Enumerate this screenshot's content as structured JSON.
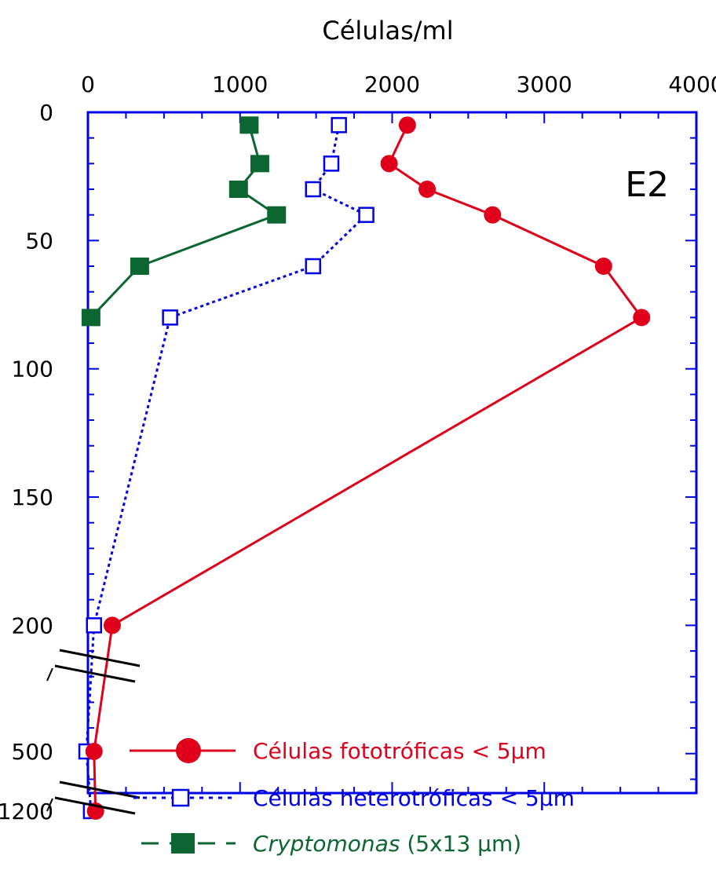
{
  "chart_data": {
    "type": "line",
    "xlabel": "Células/ml",
    "x_ticks": [
      "0",
      "1000",
      "2000",
      "3000",
      "4000"
    ],
    "y_ticks": [
      "0",
      "50",
      "100",
      "150",
      "200",
      "500",
      "1200"
    ],
    "xlim": [
      0,
      4000
    ],
    "y_axis_note": "broken depth axis: 0-200 linear, then 500 and 1200",
    "y_axis_reversed": true,
    "panel_label": "E2",
    "legend_placement": "bottom-right",
    "series": [
      {
        "name": "Células fototróficas",
        "size_label": "< 5µm",
        "color": "#e0001b",
        "marker": "filled-circle",
        "line": "solid",
        "depth": [
          5,
          20,
          30,
          40,
          60,
          80,
          200,
          500,
          1200
        ],
        "values": [
          2100,
          1980,
          2230,
          2660,
          3390,
          3640,
          160,
          40,
          50
        ]
      },
      {
        "name": "Células heterotróficas",
        "size_label": "< 5µm",
        "color": "#0000e6",
        "marker": "open-square",
        "line": "dotted",
        "depth": [
          5,
          20,
          30,
          40,
          60,
          80,
          200,
          500,
          1200
        ],
        "values": [
          1650,
          1600,
          1480,
          1830,
          1480,
          540,
          40,
          -10,
          20
        ]
      },
      {
        "name": "Cryptomonas",
        "size_label": "(5x13 µm)",
        "color": "#0b6631",
        "marker": "filled-square",
        "line": "solid",
        "depth": [
          5,
          20,
          30,
          40,
          60,
          80
        ],
        "values": [
          1060,
          1130,
          990,
          1240,
          340,
          20
        ]
      }
    ]
  }
}
